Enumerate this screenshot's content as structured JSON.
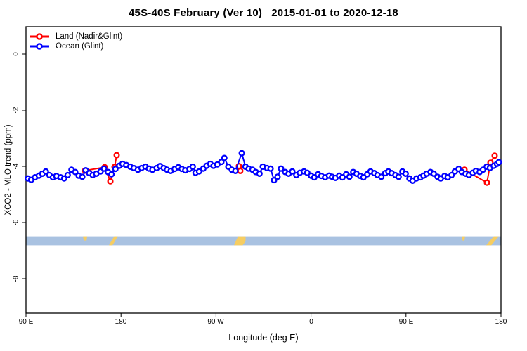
{
  "header": {
    "title": "45S-40S February (Ver 10)   2015-01-01 to 2020-12-18"
  },
  "chart_data": {
    "type": "line",
    "title": "45S-40S February (Ver 10)   2015-01-01 to 2020-12-18",
    "xlabel": "Longitude (deg E)",
    "ylabel": "XCO2 - MLO trend (ppm)",
    "x_ticks": [
      "90 E",
      "180",
      "90 W",
      "0",
      "90 E",
      "180"
    ],
    "x_tick_values": [
      90,
      180,
      270,
      360,
      450,
      540
    ],
    "x_axis_note": "longitude axis wraps eastward: 90E to 180 to 90W to 0 to 90E to 180",
    "y_ticks": [
      "0",
      "-2",
      "-4",
      "-6",
      "-8"
    ],
    "y_tick_values": [
      0,
      -2,
      -4,
      -6,
      -8
    ],
    "xlim": [
      90,
      540
    ],
    "ylim": [
      -9.2,
      1.0
    ],
    "grid": false,
    "legend_position": "top-left",
    "marker": "open-circle",
    "series": [
      {
        "name": "Land (Nadir&Glint)",
        "color": "#ff0000",
        "clusters": [
          [
            [
              145.9,
              -4.15
            ],
            [
              164.5,
              -4.03
            ],
            [
              169.9,
              -4.53
            ],
            [
              173.9,
              -4.02
            ],
            [
              175.9,
              -3.6
            ]
          ],
          [
            [
              291.7,
              -3.99
            ],
            [
              293.0,
              -4.16
            ]
          ],
          [
            [
              505.4,
              -4.12
            ],
            [
              526.7,
              -4.58
            ],
            [
              530.0,
              -3.87
            ],
            [
              534.0,
              -3.62
            ]
          ]
        ]
      },
      {
        "name": "Ocean (Glint)",
        "color": "#0000ff",
        "points": [
          [
            91.8,
            -4.43
          ],
          [
            94.9,
            -4.48
          ],
          [
            98.5,
            -4.39
          ],
          [
            102.2,
            -4.33
          ],
          [
            105.5,
            -4.26
          ],
          [
            108.8,
            -4.18
          ],
          [
            112.2,
            -4.31
          ],
          [
            115.5,
            -4.39
          ],
          [
            118.8,
            -4.34
          ],
          [
            122.8,
            -4.39
          ],
          [
            126.1,
            -4.43
          ],
          [
            129.5,
            -4.31
          ],
          [
            133.1,
            -4.12
          ],
          [
            136.6,
            -4.2
          ],
          [
            139.9,
            -4.33
          ],
          [
            143.3,
            -4.37
          ],
          [
            146.6,
            -4.14
          ],
          [
            149.9,
            -4.24
          ],
          [
            153.2,
            -4.31
          ],
          [
            156.6,
            -4.26
          ],
          [
            160.6,
            -4.18
          ],
          [
            163.9,
            -4.08
          ],
          [
            167.7,
            -4.2
          ],
          [
            171.0,
            -4.28
          ],
          [
            174.7,
            -4.09
          ],
          [
            178.3,
            -3.98
          ],
          [
            181.4,
            -3.91
          ],
          [
            185.0,
            -3.95
          ],
          [
            188.7,
            -4.01
          ],
          [
            192.1,
            -4.06
          ],
          [
            196.0,
            -4.12
          ],
          [
            199.4,
            -4.06
          ],
          [
            203.2,
            -4.01
          ],
          [
            206.5,
            -4.08
          ],
          [
            209.8,
            -4.12
          ],
          [
            213.8,
            -4.06
          ],
          [
            216.9,
            -3.99
          ],
          [
            220.5,
            -4.06
          ],
          [
            223.6,
            -4.12
          ],
          [
            227.1,
            -4.16
          ],
          [
            230.9,
            -4.09
          ],
          [
            234.3,
            -4.03
          ],
          [
            237.6,
            -4.09
          ],
          [
            240.9,
            -4.14
          ],
          [
            244.9,
            -4.09
          ],
          [
            248.0,
            -4.01
          ],
          [
            250.6,
            -4.23
          ],
          [
            254.0,
            -4.18
          ],
          [
            258.0,
            -4.08
          ],
          [
            261.1,
            -3.98
          ],
          [
            264.6,
            -3.91
          ],
          [
            267.7,
            -3.98
          ],
          [
            271.3,
            -3.93
          ],
          [
            275.1,
            -3.84
          ],
          [
            277.9,
            -3.7
          ],
          [
            281.7,
            -4.01
          ],
          [
            285.0,
            -4.12
          ],
          [
            288.4,
            -4.16
          ],
          [
            294.4,
            -3.53
          ],
          [
            297.9,
            -4.01
          ],
          [
            301.0,
            -4.08
          ],
          [
            304.6,
            -4.12
          ],
          [
            307.7,
            -4.2
          ],
          [
            311.2,
            -4.26
          ],
          [
            314.3,
            -4.01
          ],
          [
            318.3,
            -4.06
          ],
          [
            321.7,
            -4.08
          ],
          [
            325.0,
            -4.49
          ],
          [
            328.3,
            -4.37
          ],
          [
            331.6,
            -4.08
          ],
          [
            335.6,
            -4.2
          ],
          [
            338.8,
            -4.26
          ],
          [
            342.3,
            -4.18
          ],
          [
            346.1,
            -4.31
          ],
          [
            349.4,
            -4.23
          ],
          [
            353.4,
            -4.18
          ],
          [
            356.5,
            -4.23
          ],
          [
            360.1,
            -4.33
          ],
          [
            363.1,
            -4.39
          ],
          [
            366.7,
            -4.28
          ],
          [
            369.8,
            -4.34
          ],
          [
            373.4,
            -4.39
          ],
          [
            377.1,
            -4.33
          ],
          [
            380.0,
            -4.37
          ],
          [
            383.1,
            -4.41
          ],
          [
            386.7,
            -4.33
          ],
          [
            389.8,
            -4.39
          ],
          [
            393.3,
            -4.28
          ],
          [
            396.4,
            -4.37
          ],
          [
            400.0,
            -4.2
          ],
          [
            403.1,
            -4.26
          ],
          [
            406.7,
            -4.34
          ],
          [
            409.7,
            -4.39
          ],
          [
            413.3,
            -4.28
          ],
          [
            416.4,
            -4.18
          ],
          [
            420.0,
            -4.24
          ],
          [
            423.0,
            -4.31
          ],
          [
            426.6,
            -4.37
          ],
          [
            430.4,
            -4.24
          ],
          [
            433.3,
            -4.18
          ],
          [
            436.4,
            -4.24
          ],
          [
            440.0,
            -4.31
          ],
          [
            443.0,
            -4.37
          ],
          [
            446.6,
            -4.18
          ],
          [
            449.7,
            -4.26
          ],
          [
            453.3,
            -4.43
          ],
          [
            456.3,
            -4.51
          ],
          [
            459.9,
            -4.43
          ],
          [
            463.6,
            -4.39
          ],
          [
            466.6,
            -4.33
          ],
          [
            469.6,
            -4.26
          ],
          [
            473.2,
            -4.2
          ],
          [
            476.3,
            -4.26
          ],
          [
            479.9,
            -4.37
          ],
          [
            482.9,
            -4.43
          ],
          [
            486.5,
            -4.34
          ],
          [
            489.6,
            -4.39
          ],
          [
            493.2,
            -4.31
          ],
          [
            496.3,
            -4.18
          ],
          [
            499.9,
            -4.09
          ],
          [
            502.9,
            -4.2
          ],
          [
            506.5,
            -4.26
          ],
          [
            509.6,
            -4.31
          ],
          [
            513.2,
            -4.23
          ],
          [
            516.2,
            -4.16
          ],
          [
            519.8,
            -4.2
          ],
          [
            522.9,
            -4.12
          ],
          [
            526.5,
            -4.01
          ],
          [
            529.5,
            -4.06
          ],
          [
            533.1,
            -3.98
          ],
          [
            536.2,
            -3.91
          ],
          [
            538.0,
            -3.85
          ]
        ]
      }
    ],
    "land_ocean_band": {
      "description": "ocean/land indicator strip",
      "ocean_color": "#a9c2e1",
      "land_color": "#f6cd62",
      "y_top_value": -6.49,
      "y_bottom_value": -6.81,
      "land_patches": [
        {
          "from": 144.0,
          "to": 148.0,
          "kind": "top"
        },
        {
          "from": 168.5,
          "to": 177.0,
          "kind": "streak"
        },
        {
          "from": 287.0,
          "to": 298.0,
          "kind": "blob"
        },
        {
          "from": 503.0,
          "to": 506.0,
          "kind": "top"
        },
        {
          "from": 526.0,
          "to": 538.0,
          "kind": "streak"
        }
      ]
    }
  }
}
